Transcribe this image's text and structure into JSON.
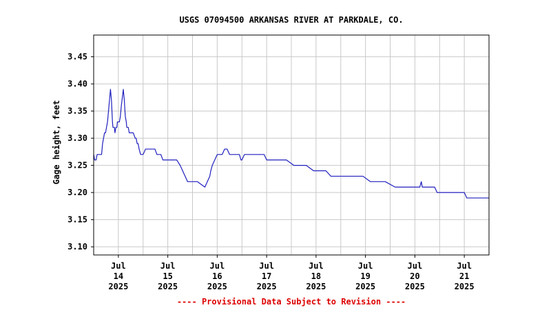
{
  "chart_data": {
    "type": "line",
    "title": "USGS 07094500 ARKANSAS RIVER AT PARKDALE, CO.",
    "ylabel": "Gage height, feet",
    "xlabel": "",
    "footer": "---- Provisional Data Subject to Revision ----",
    "ylim": [
      3.085,
      3.49
    ],
    "yticks": [
      "3.10",
      "3.15",
      "3.20",
      "3.25",
      "3.30",
      "3.35",
      "3.40",
      "3.45"
    ],
    "xlim": [
      13.5,
      21.5
    ],
    "xticks": [
      {
        "value": 14,
        "month": "Jul",
        "day": "14",
        "year": "2025"
      },
      {
        "value": 15,
        "month": "Jul",
        "day": "15",
        "year": "2025"
      },
      {
        "value": 16,
        "month": "Jul",
        "day": "16",
        "year": "2025"
      },
      {
        "value": 17,
        "month": "Jul",
        "day": "17",
        "year": "2025"
      },
      {
        "value": 18,
        "month": "Jul",
        "day": "18",
        "year": "2025"
      },
      {
        "value": 19,
        "month": "Jul",
        "day": "19",
        "year": "2025"
      },
      {
        "value": 20,
        "month": "Jul",
        "day": "20",
        "year": "2025"
      },
      {
        "value": 21,
        "month": "Jul",
        "day": "21",
        "year": "2025"
      }
    ],
    "grid": true,
    "colors": {
      "line": "#1f1fbf",
      "grid": "#c8c8c8",
      "footer": "#dd0000"
    },
    "series": [
      {
        "x": [
          13.5,
          13.52,
          13.53,
          13.55,
          13.57,
          13.6,
          13.62,
          13.66,
          13.68,
          13.7,
          13.72,
          13.74,
          13.76,
          13.78,
          13.8,
          13.82,
          13.84,
          13.85,
          13.86,
          13.87,
          13.88,
          13.89,
          13.9,
          13.92,
          13.93,
          13.95,
          13.97,
          13.98,
          14.0,
          14.02,
          14.04,
          14.06,
          14.1,
          14.12,
          14.14,
          14.16,
          14.17,
          14.18,
          14.2,
          14.22,
          14.24,
          14.26,
          14.3,
          14.34,
          14.36,
          14.38,
          14.4,
          14.42,
          14.45,
          14.5,
          14.55,
          14.6,
          14.62,
          14.65,
          14.7,
          14.72,
          14.74,
          14.78,
          14.82,
          14.86,
          14.9,
          15.0,
          15.1,
          15.18,
          15.25,
          15.3,
          15.35,
          15.4,
          15.6,
          15.75,
          15.8,
          15.85,
          15.87,
          15.9,
          15.95,
          16.0,
          16.03,
          16.06,
          16.1,
          16.15,
          16.2,
          16.25,
          16.3,
          16.4,
          16.45,
          16.48,
          16.5,
          16.55,
          16.6,
          16.7,
          16.8,
          16.85,
          16.9,
          16.95,
          17.0,
          17.2,
          17.4,
          17.55,
          17.6,
          17.8,
          17.95,
          18.0,
          18.2,
          18.3,
          18.4,
          18.5,
          18.6,
          18.8,
          18.9,
          18.95,
          19.1,
          19.3,
          19.4,
          19.6,
          19.7,
          19.8,
          19.85,
          19.9,
          19.95,
          20.0,
          20.1,
          20.13,
          20.15,
          20.17,
          20.2,
          20.3,
          20.4,
          20.45,
          20.6,
          20.8,
          20.9,
          21.0,
          21.05,
          21.2,
          21.5
        ],
        "y": [
          3.27,
          3.26,
          3.26,
          3.26,
          3.27,
          3.27,
          3.27,
          3.27,
          3.29,
          3.3,
          3.31,
          3.31,
          3.32,
          3.33,
          3.35,
          3.37,
          3.39,
          3.38,
          3.37,
          3.35,
          3.33,
          3.32,
          3.32,
          3.32,
          3.31,
          3.32,
          3.32,
          3.33,
          3.33,
          3.33,
          3.34,
          3.36,
          3.39,
          3.37,
          3.34,
          3.33,
          3.32,
          3.32,
          3.32,
          3.31,
          3.31,
          3.31,
          3.31,
          3.3,
          3.3,
          3.29,
          3.29,
          3.28,
          3.27,
          3.27,
          3.28,
          3.28,
          3.28,
          3.28,
          3.28,
          3.28,
          3.28,
          3.27,
          3.27,
          3.27,
          3.26,
          3.26,
          3.26,
          3.26,
          3.25,
          3.24,
          3.23,
          3.22,
          3.22,
          3.21,
          3.22,
          3.23,
          3.24,
          3.25,
          3.26,
          3.27,
          3.27,
          3.27,
          3.27,
          3.28,
          3.28,
          3.27,
          3.27,
          3.27,
          3.27,
          3.26,
          3.26,
          3.27,
          3.27,
          3.27,
          3.27,
          3.27,
          3.27,
          3.27,
          3.26,
          3.26,
          3.26,
          3.25,
          3.25,
          3.25,
          3.24,
          3.24,
          3.24,
          3.23,
          3.23,
          3.23,
          3.23,
          3.23,
          3.23,
          3.23,
          3.22,
          3.22,
          3.22,
          3.21,
          3.21,
          3.21,
          3.21,
          3.21,
          3.21,
          3.21,
          3.21,
          3.22,
          3.21,
          3.21,
          3.21,
          3.21,
          3.21,
          3.2,
          3.2,
          3.2,
          3.2,
          3.2,
          3.19,
          3.19,
          3.19
        ]
      }
    ]
  }
}
